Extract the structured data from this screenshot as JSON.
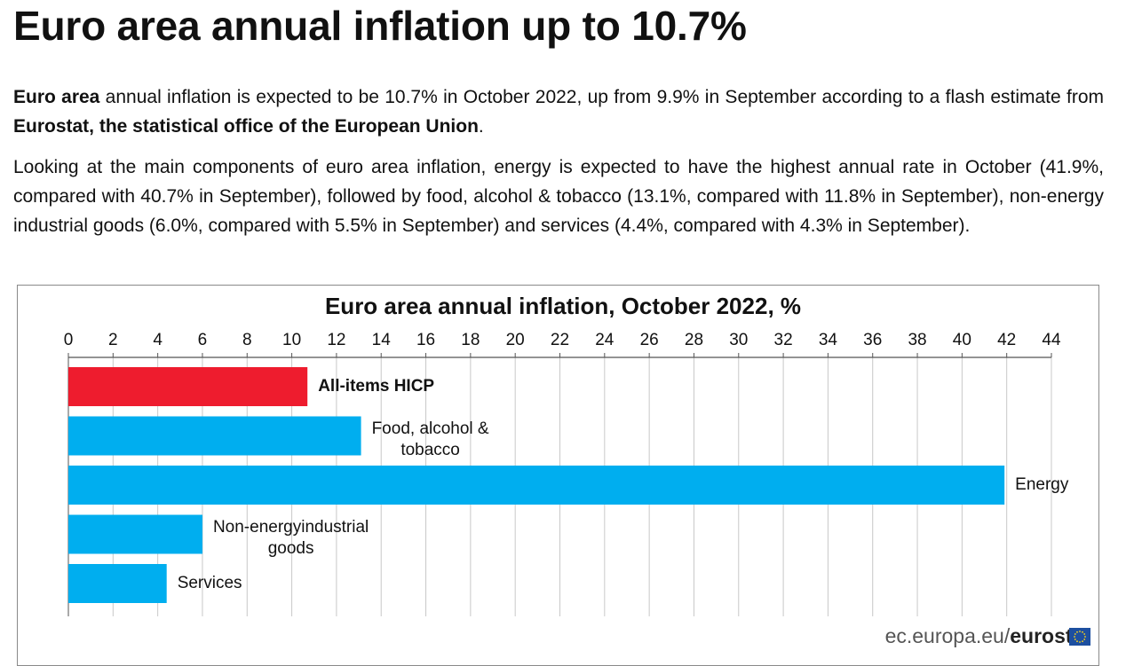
{
  "headline": "Euro area annual inflation up to 10.7%",
  "paragraph1": {
    "bold_start": "Euro area",
    "text_mid": " annual inflation is expected to be 10.7% in October 2022, up from 9.9% in September according to a flash estimate from ",
    "bold_source": "Eurostat, the statistical office of the European Union",
    "text_end": "."
  },
  "paragraph2": "Looking at the main components of euro area inflation, energy is expected to have the highest annual rate in October (41.9%, compared with 40.7% in September), followed by food, alcohol & tobacco (13.1%, compared with 11.8% in September), non-energy industrial goods (6.0%, compared with 5.5% in September) and services (4.4%, compared with 4.3% in September).",
  "footer": {
    "source": "ec.europa.eu/",
    "brand": "eurostat",
    "flag_icon": "eu-flag-icon"
  },
  "colors": {
    "highlight_bar": "#ee1c2e",
    "bar": "#00aeef",
    "grid": "#c8c8c8",
    "axis": "#555555"
  },
  "chart_data": {
    "type": "bar",
    "orientation": "horizontal",
    "title": "Euro area annual inflation, October 2022, %",
    "categories": [
      "All-items HICP",
      "Food, alcohol & tobacco",
      "Energy",
      "Non-energy industrial goods",
      "Services"
    ],
    "category_lines": [
      [
        "All-items HICP"
      ],
      [
        "Food, alcohol &",
        "tobacco"
      ],
      [
        "Energy"
      ],
      [
        "Non-energyindustrial",
        "goods"
      ],
      [
        "Services"
      ]
    ],
    "values": [
      10.7,
      13.1,
      41.9,
      6.0,
      4.4
    ],
    "highlight_index": 0,
    "xlim": [
      0,
      44
    ],
    "xticks": [
      0,
      2,
      4,
      6,
      8,
      10,
      12,
      14,
      16,
      18,
      20,
      22,
      24,
      26,
      28,
      30,
      32,
      34,
      36,
      38,
      40,
      42,
      44
    ],
    "xtick_position": "top",
    "grid": "vertical",
    "legend": "none",
    "label_placement": "after-bar"
  }
}
